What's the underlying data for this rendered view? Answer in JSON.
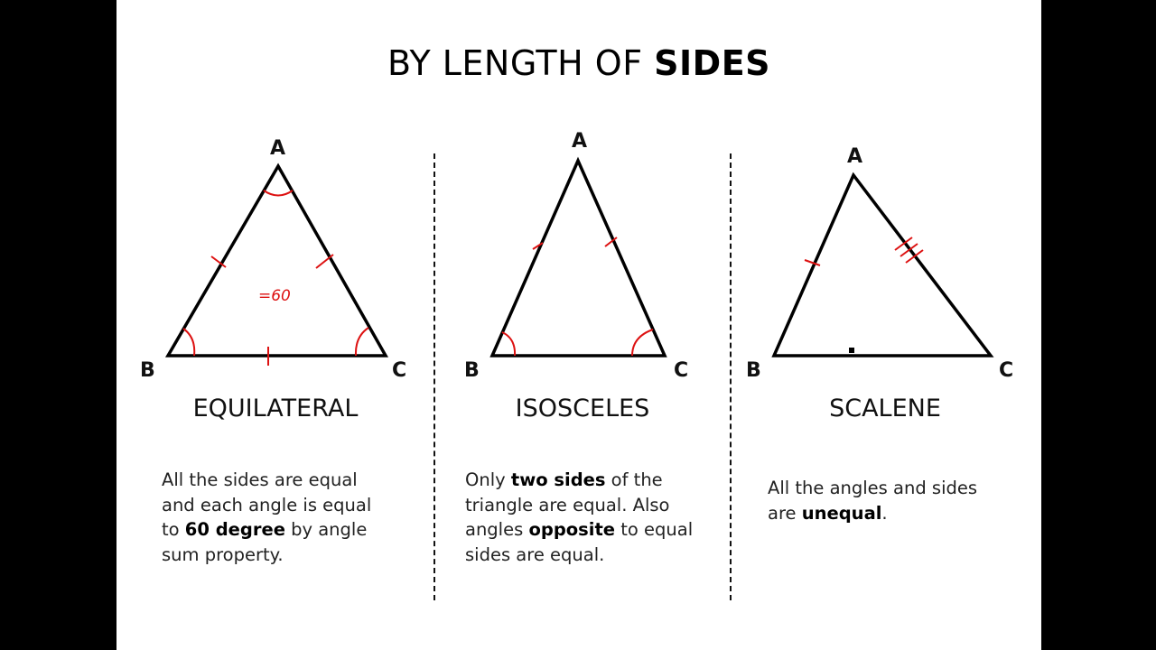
{
  "title": {
    "prefix": "BY LENGTH OF ",
    "bold": "SIDES"
  },
  "vertices": {
    "top": "A",
    "left": "B",
    "right": "C"
  },
  "annotation": "=60",
  "triangles": [
    {
      "name": "EQUILATERAL",
      "desc": [
        {
          "text": "All the sides are equal and each angle is equal to "
        },
        {
          "bold": "60 degree"
        },
        {
          "text": " by angle sum property."
        }
      ]
    },
    {
      "name": "ISOSCELES",
      "desc": [
        {
          "text": "Only "
        },
        {
          "bold": "two sides"
        },
        {
          "text": " of the triangle are equal. Also angles "
        },
        {
          "bold": "opposite"
        },
        {
          "text": " to equal sides are equal."
        }
      ]
    },
    {
      "name": "SCALENE",
      "desc": [
        {
          "text": "All the angles and sides are "
        },
        {
          "bold": "unequal"
        },
        {
          "text": "."
        }
      ]
    }
  ],
  "colors": {
    "lines": "#000000",
    "marks": "#dd1111",
    "background": "#ffffff"
  }
}
